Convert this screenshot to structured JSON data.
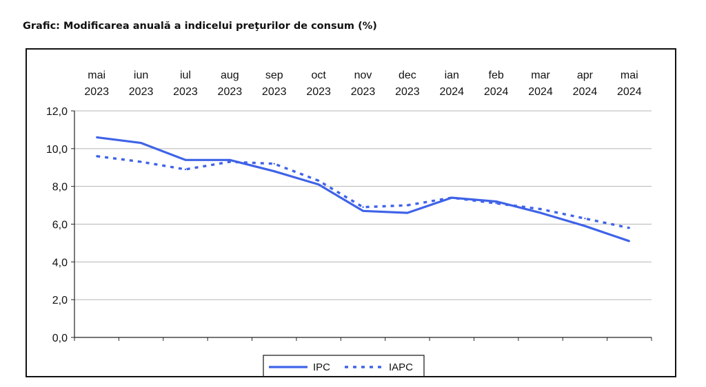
{
  "title": "Grafic: Modificarea anuală a indicelui preţurilor de consum (%)",
  "chart_data": {
    "type": "line",
    "categories": [
      [
        "mai",
        "2023"
      ],
      [
        "iun",
        "2023"
      ],
      [
        "iul",
        "2023"
      ],
      [
        "aug",
        "2023"
      ],
      [
        "sep",
        "2023"
      ],
      [
        "oct",
        "2023"
      ],
      [
        "nov",
        "2023"
      ],
      [
        "dec",
        "2023"
      ],
      [
        "ian",
        "2024"
      ],
      [
        "feb",
        "2024"
      ],
      [
        "mar",
        "2024"
      ],
      [
        "apr",
        "2024"
      ],
      [
        "mai",
        "2024"
      ]
    ],
    "series": [
      {
        "name": "IPC",
        "style": "solid",
        "color": "#3f63e8",
        "values": [
          10.6,
          10.3,
          9.4,
          9.4,
          8.8,
          8.1,
          6.7,
          6.6,
          7.4,
          7.2,
          6.6,
          5.9,
          5.1
        ]
      },
      {
        "name": "IAPC",
        "style": "dotted",
        "color": "#3f63e8",
        "values": [
          9.6,
          9.3,
          8.9,
          9.3,
          9.2,
          8.3,
          6.9,
          7.0,
          7.4,
          7.1,
          6.8,
          6.3,
          5.8
        ]
      }
    ],
    "y_ticks": [
      "0,0",
      "2,0",
      "4,0",
      "6,0",
      "8,0",
      "10,0",
      "12,0"
    ],
    "ylim": [
      0,
      12
    ],
    "grid": true,
    "x_axis_position": "top",
    "legend_position": "bottom-center"
  }
}
